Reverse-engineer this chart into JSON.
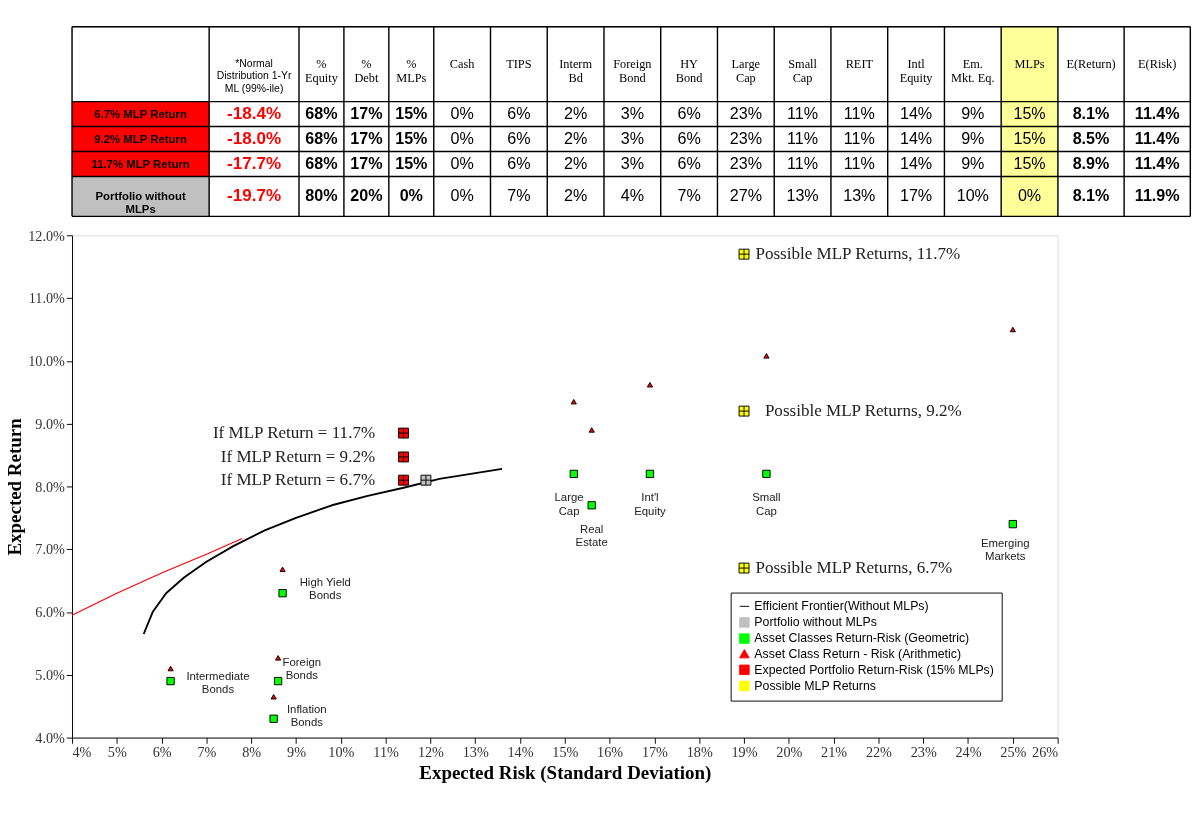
{
  "chart_data": [
    {
      "type": "heatmap",
      "categories": [
        "*Normal\nDistribution 1-Yr\nML (99%-ile)",
        "%\nEquity",
        "%\nDebt",
        "%\nMLPs",
        "Cash",
        "TIPS",
        "Interm\nBd",
        "Foreign\nBond",
        "HY\nBond",
        "Large\nCap",
        "Small\nCap",
        "REIT",
        "Intl\nEquity",
        "Em.\nMkt. Eq.",
        "MLPs",
        "E(Return)",
        "E(Risk)"
      ],
      "bands": [
        {
          "axis": "x",
          "from": "MLPs",
          "to": "MLPs",
          "color": "#ffff99"
        }
      ],
      "y_categories": [
        "6.7% MLP Return",
        "9.2% MLP Return",
        "11.7% MLP Return",
        "Portfolio without\nMLPs"
      ],
      "cells": [
        [
          -18.4,
          68,
          17,
          15,
          0,
          6,
          2,
          3,
          6,
          23,
          11,
          11,
          14,
          9,
          15,
          8.1,
          11.4
        ],
        [
          -18.0,
          68,
          17,
          15,
          0,
          6,
          2,
          3,
          6,
          23,
          11,
          11,
          14,
          9,
          15,
          8.5,
          11.4
        ],
        [
          -17.7,
          68,
          17,
          15,
          0,
          6,
          2,
          3,
          6,
          23,
          11,
          11,
          14,
          9,
          15,
          8.9,
          11.4
        ],
        [
          -19.7,
          80,
          20,
          0,
          0,
          7,
          2,
          4,
          7,
          27,
          13,
          13,
          17,
          10,
          0,
          8.1,
          11.9
        ]
      ],
      "cell_labels": [
        [
          "-18.4%",
          "68%",
          "17%",
          "15%",
          "0%",
          "6%",
          "2%",
          "3%",
          "6%",
          "23%",
          "11%",
          "11%",
          "14%",
          "9%",
          "15%",
          "8.1%",
          "11.4%"
        ],
        [
          "-18.0%",
          "68%",
          "17%",
          "15%",
          "0%",
          "6%",
          "2%",
          "3%",
          "6%",
          "23%",
          "11%",
          "11%",
          "14%",
          "9%",
          "15%",
          "8.5%",
          "11.4%"
        ],
        [
          "-17.7%",
          "68%",
          "17%",
          "15%",
          "0%",
          "6%",
          "2%",
          "3%",
          "6%",
          "23%",
          "11%",
          "11%",
          "14%",
          "9%",
          "15%",
          "8.9%",
          "11.4%"
        ],
        [
          "-19.7%",
          "80%",
          "20%",
          "0%",
          "0%",
          "7%",
          "2%",
          "4%",
          "7%",
          "27%",
          "13%",
          "13%",
          "17%",
          "10%",
          "0%",
          "8.1%",
          "11.9%"
        ]
      ]
    },
    {
      "type": "scatter",
      "xlabel": "Expected Risk (Standard Deviation)",
      "ylabel": "Expected Return",
      "xlim": [
        4,
        26
      ],
      "ylim": [
        4,
        12
      ],
      "xticks": [
        {
          "value": 4,
          "label": "4%"
        },
        {
          "value": 5,
          "label": "5%"
        },
        {
          "value": 6,
          "label": "6%"
        },
        {
          "value": 7,
          "label": "7%"
        },
        {
          "value": 8,
          "label": "8%"
        },
        {
          "value": 9,
          "label": "9%"
        },
        {
          "value": 10,
          "label": "10%"
        },
        {
          "value": 11,
          "label": "11%"
        },
        {
          "value": 12,
          "label": "12%"
        },
        {
          "value": 13,
          "label": "13%"
        },
        {
          "value": 14,
          "label": "14%"
        },
        {
          "value": 15,
          "label": "15%"
        },
        {
          "value": 16,
          "label": "16%"
        },
        {
          "value": 17,
          "label": "17%"
        },
        {
          "value": 18,
          "label": "18%"
        },
        {
          "value": 19,
          "label": "19%"
        },
        {
          "value": 20,
          "label": "20%"
        },
        {
          "value": 21,
          "label": "21%"
        },
        {
          "value": 22,
          "label": "22%"
        },
        {
          "value": 23,
          "label": "23%"
        },
        {
          "value": 24,
          "label": "24%"
        },
        {
          "value": 25,
          "label": "25%"
        },
        {
          "value": 26,
          "label": "26%"
        }
      ],
      "yticks": [
        {
          "value": 4,
          "label": "4.0%"
        },
        {
          "value": 5,
          "label": "5.0%"
        },
        {
          "value": 6,
          "label": "6.0%"
        },
        {
          "value": 7,
          "label": "7.0%"
        },
        {
          "value": 8,
          "label": "8.0%"
        },
        {
          "value": 9,
          "label": "9.0%"
        },
        {
          "value": 10,
          "label": "10.0%"
        },
        {
          "value": 11,
          "label": "11.0%"
        },
        {
          "value": 12,
          "label": "12.0%"
        }
      ],
      "grid": false,
      "legend": "bottom right",
      "series": [
        {
          "type": "line",
          "color": "#ff0000",
          "x": [
            4,
            5,
            6,
            7,
            7.8
          ],
          "values": [
            5.95,
            6.3,
            6.62,
            6.92,
            7.17
          ]
        },
        {
          "type": "line",
          "name": "Efficient Frontier(Without MLPs)",
          "color": "#000000",
          "marker": "none",
          "x": [
            5.6,
            5.8,
            6.1,
            6.5,
            7.0,
            7.6,
            8.3,
            9.0,
            9.8,
            10.6,
            11.4,
            12.2,
            12.9,
            13.6
          ],
          "values": [
            5.65,
            6.0,
            6.3,
            6.55,
            6.8,
            7.05,
            7.3,
            7.5,
            7.7,
            7.85,
            7.98,
            8.12,
            8.2,
            8.28
          ]
        },
        {
          "type": "scatter",
          "name": "Portfolio without MLPs",
          "color": "#c0c0c0",
          "marker": "cross",
          "x": [
            11.9
          ],
          "values": [
            8.1
          ]
        },
        {
          "type": "scatter",
          "name": "Asset Classes Return-Risk (Geometric)",
          "color": "#00ff00",
          "marker": "square",
          "x": [
            6.2,
            8.5,
            8.6,
            8.7,
            15.2,
            15.6,
            16.9,
            19.5,
            25
          ],
          "values": [
            4.9,
            4.3,
            4.9,
            6.3,
            8.2,
            7.7,
            8.2,
            8.2,
            7.4
          ]
        },
        {
          "type": "scatter",
          "name": "Asset Class Return - Risk (Arithmetic)",
          "color": "#ff0000",
          "marker": "triangle",
          "x": [
            6.2,
            8.5,
            8.6,
            8.7,
            15.2,
            15.6,
            16.9,
            19.5,
            25
          ],
          "values": [
            5.1,
            4.65,
            5.27,
            6.68,
            9.35,
            8.9,
            9.62,
            10.08,
            10.5
          ]
        },
        {
          "type": "scatter",
          "name": "Expected Portfolio Return-Risk (15% MLPs)",
          "color": "#ff0000",
          "marker": "cross",
          "x": [
            11.4,
            11.4,
            11.4
          ],
          "values": [
            8.1,
            8.47,
            8.85
          ]
        },
        {
          "type": "scatter",
          "name": "Possible MLP Returns",
          "color": "#ffff00",
          "marker": "cross",
          "x": [
            19,
            19,
            19
          ],
          "values": [
            11.7,
            9.2,
            6.7
          ]
        }
      ],
      "annotations": [
        {
          "text": "If MLP Return = 11.7%",
          "x": 11.4,
          "y": 8.85
        },
        {
          "text": "If MLP Return = 9.2%",
          "x": 11.4,
          "y": 8.47
        },
        {
          "text": "If MLP Return = 6.7%",
          "x": 11.4,
          "y": 8.1
        },
        {
          "text": "Possible MLP Returns, 11.7%",
          "x": 19,
          "y": 11.7
        },
        {
          "text": "Possible MLP Returns, 9.2%",
          "x": 19,
          "y": 9.2
        },
        {
          "text": "Possible MLP Returns, 6.7%",
          "x": 19,
          "y": 6.7
        },
        {
          "text": "Large\nCap",
          "x": 15.2,
          "y": 8.2
        },
        {
          "text": "Real\nEstate",
          "x": 15.6,
          "y": 7.7
        },
        {
          "text": "Int'l\nEquity",
          "x": 16.9,
          "y": 8.2
        },
        {
          "text": "Small\nCap",
          "x": 19.5,
          "y": 8.2
        },
        {
          "text": "Emerging\nMarkets",
          "x": 25,
          "y": 7.4
        },
        {
          "text": "High Yield\nBonds",
          "x": 8.7,
          "y": 6.3
        },
        {
          "text": "Intermediate\nBonds",
          "x": 6.2,
          "y": 4.9
        },
        {
          "text": "Foreign\nBonds",
          "x": 8.6,
          "y": 4.9
        },
        {
          "text": "Inflation\nBonds",
          "x": 8.5,
          "y": 4.3
        }
      ]
    }
  ]
}
